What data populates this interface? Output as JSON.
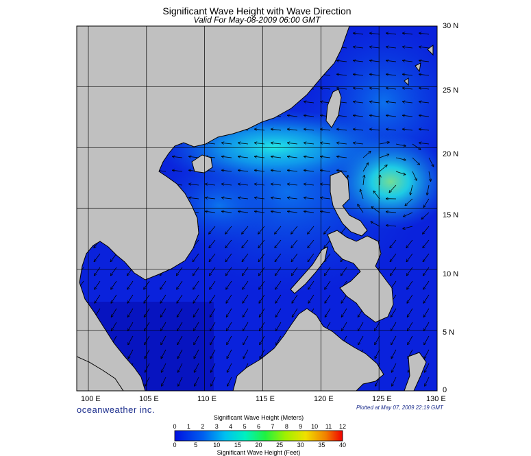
{
  "header": {
    "title": "Significant Wave Height with Wave Direction",
    "subtitle": "Valid For May-08-2009 06:00 GMT"
  },
  "map": {
    "lon_labels": [
      "100 E",
      "105 E",
      "110 E",
      "115 E",
      "120 E",
      "125 E",
      "130 E"
    ],
    "lat_labels": [
      "30 N",
      "25 N",
      "20 N",
      "15 N",
      "10 N",
      "5 N",
      "0"
    ],
    "lon_range": [
      99,
      130
    ],
    "lat_range": [
      0,
      30
    ],
    "land_color": "#c0c0c0",
    "sea_low_color": "#0a1ad8",
    "grid": true
  },
  "branding": {
    "company": "oceanweather inc.",
    "plotted": "Plotted at May 07, 2009 22:19 GMT"
  },
  "colorbar": {
    "meters_label": "Significant Wave Height (Meters)",
    "feet_label": "Significant Wave Height (Feet)",
    "meters_ticks": [
      "0",
      "1",
      "2",
      "3",
      "4",
      "5",
      "6",
      "7",
      "8",
      "9",
      "10",
      "11",
      "12"
    ],
    "feet_ticks": [
      "0",
      "5",
      "10",
      "15",
      "20",
      "25",
      "30",
      "35",
      "40"
    ]
  }
}
